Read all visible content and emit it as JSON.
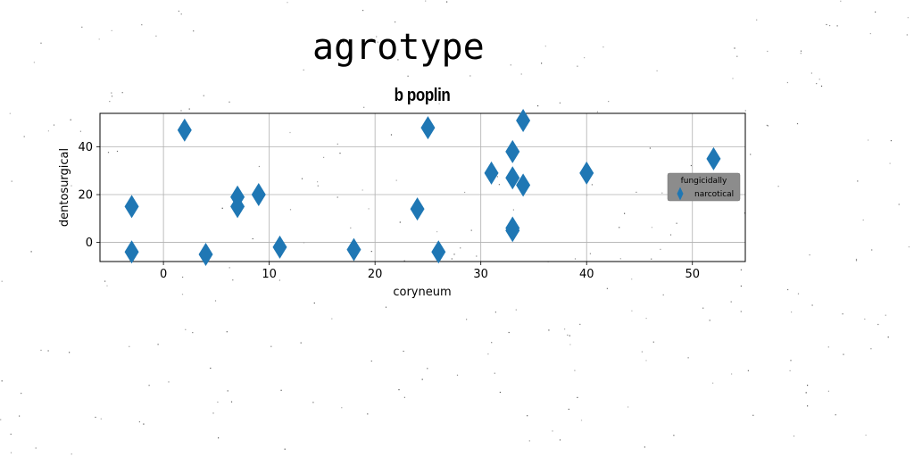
{
  "figure": {
    "suptitle": "agrotype"
  },
  "chart_data": {
    "type": "scatter",
    "title": "b poplin",
    "xlabel": "coryneum",
    "ylabel": "dentosurgical",
    "xlim": [
      -6,
      55
    ],
    "ylim": [
      -8,
      54
    ],
    "xticks": [
      0,
      10,
      20,
      30,
      40,
      50
    ],
    "yticks": [
      0,
      20,
      40
    ],
    "grid": true,
    "marker": "thin-diamond",
    "color": "#1f77b4",
    "legend": {
      "title": "fungicidally",
      "placement": "center-right",
      "background": "#8c8c8c"
    },
    "series": [
      {
        "name": "narcotical",
        "x": [
          -3,
          -3,
          2,
          4,
          7,
          7,
          9,
          11,
          18,
          24,
          25,
          26,
          31,
          33,
          33,
          33,
          33,
          34,
          34,
          40,
          52
        ],
        "y": [
          15,
          -4,
          47,
          -5,
          19,
          15,
          20,
          -2,
          -3,
          14,
          48,
          -4,
          29,
          38,
          27,
          6,
          5,
          24,
          51,
          29,
          35
        ]
      }
    ]
  }
}
